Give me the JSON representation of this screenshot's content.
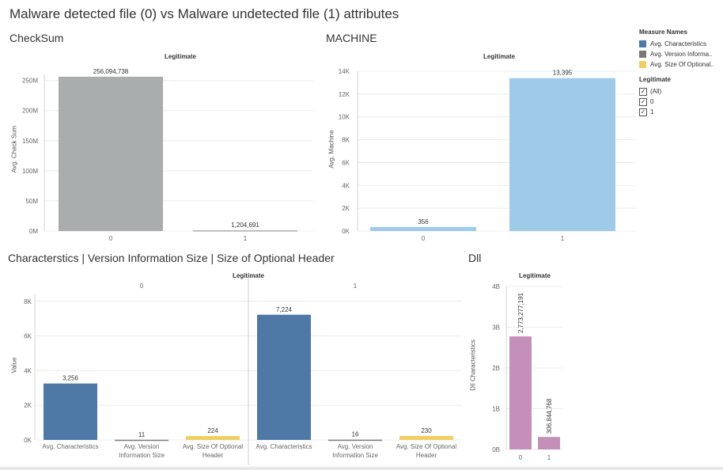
{
  "dashboard_title": "Malware detected file (0) vs  Malware undetected file (1) attributes",
  "legend": {
    "measure_header": "Measure Names",
    "measures": [
      {
        "label": "Avg. Characteristics",
        "color": "#4e79a7"
      },
      {
        "label": "Avg. Version Informa..",
        "color": "#797979"
      },
      {
        "label": "Avg. Size Of Optional..",
        "color": "#f1ce63"
      }
    ],
    "filter_header": "Legitimate",
    "filter_items": [
      {
        "label": "(All)",
        "checked": true
      },
      {
        "label": "0",
        "checked": true
      },
      {
        "label": "1",
        "checked": true
      }
    ]
  },
  "chart_data": [
    {
      "sheet": "CheckSum",
      "type": "bar",
      "header": "Legitimate",
      "ylabel": "Avg. Check Sum",
      "categories": [
        "0",
        "1"
      ],
      "values": [
        256094738,
        1204691
      ],
      "value_labels": [
        "256,094,738",
        "1,204,691"
      ],
      "ylim": [
        0,
        260000000
      ],
      "y_ticks": [
        0,
        50000000,
        100000000,
        150000000,
        200000000,
        250000000
      ],
      "y_tick_labels": [
        "0M",
        "50M",
        "100M",
        "150M",
        "200M",
        "250M"
      ],
      "colors": [
        "#aaadad",
        "#aaadad"
      ]
    },
    {
      "sheet": "MACHINE",
      "type": "bar",
      "header": "Legitimate",
      "ylabel": "Avg. Machine",
      "categories": [
        "0",
        "1"
      ],
      "values": [
        356,
        13395
      ],
      "value_labels": [
        "356",
        "13,395"
      ],
      "ylim": [
        0,
        14000
      ],
      "y_ticks": [
        0,
        2000,
        4000,
        6000,
        8000,
        10000,
        12000,
        14000
      ],
      "y_tick_labels": [
        "0K",
        "2K",
        "4K",
        "6K",
        "8K",
        "10K",
        "12K",
        "14K"
      ],
      "colors": [
        "#a0cbe8",
        "#a0cbe8"
      ]
    },
    {
      "sheet": "Characterstics | Version Information Size | Size of Optional Header",
      "type": "bar",
      "header": "Legitimate",
      "ylabel": "Value",
      "panes": [
        "0",
        "1"
      ],
      "categories": [
        "Avg. Characteristics",
        "Avg. Version Information Size",
        "Avg. Size Of Optional Header"
      ],
      "category_lines": [
        [
          "Avg. Characteristics"
        ],
        [
          "Avg. Version",
          "Information Size"
        ],
        [
          "Avg. Size Of Optional",
          "Header"
        ]
      ],
      "series": [
        {
          "pane": "0",
          "values": [
            3256,
            11,
            224
          ],
          "value_labels": [
            "3,256",
            "11",
            "224"
          ]
        },
        {
          "pane": "1",
          "values": [
            7224,
            16,
            230
          ],
          "value_labels": [
            "7,224",
            "16",
            "230"
          ]
        }
      ],
      "colors": [
        "#4e79a7",
        "#797979",
        "#f1ce63"
      ],
      "ylim": [
        0,
        8400
      ],
      "y_ticks": [
        0,
        2000,
        4000,
        6000,
        8000
      ],
      "y_tick_labels": [
        "0K",
        "2K",
        "4K",
        "6K",
        "8K"
      ]
    },
    {
      "sheet": "Dll",
      "type": "bar",
      "header": "Legitimate",
      "ylabel": "Dll Characteristics",
      "categories": [
        "0",
        "1"
      ],
      "values": [
        2773277191,
        306844768
      ],
      "value_labels": [
        "2,773,277,191",
        "306,844,768"
      ],
      "ylim": [
        0,
        4000000000
      ],
      "y_ticks": [
        0,
        1000000000,
        2000000000,
        3000000000,
        4000000000
      ],
      "y_tick_labels": [
        "0B",
        "1B",
        "2B",
        "3B",
        "4B"
      ],
      "colors": [
        "#c48fb8",
        "#c48fb8"
      ]
    }
  ]
}
